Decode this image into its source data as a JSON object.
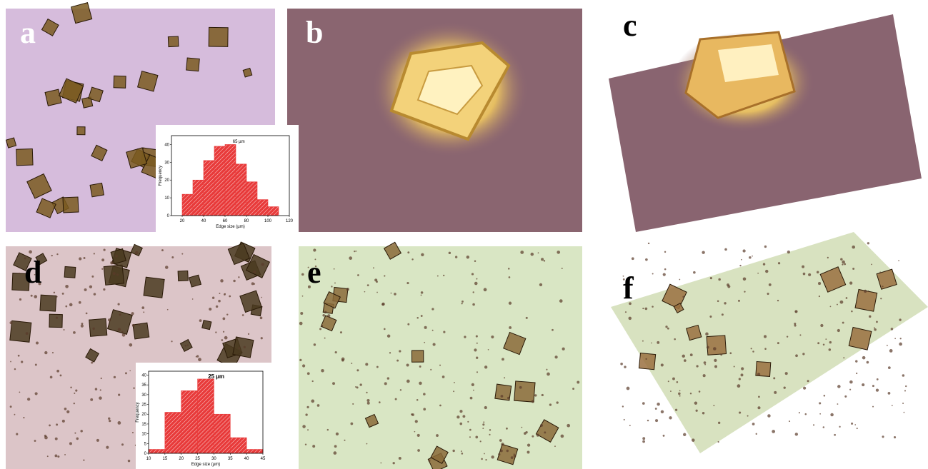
{
  "panels": [
    {
      "label": "a"
    },
    {
      "label": "b"
    },
    {
      "label": "c"
    },
    {
      "label": "d"
    },
    {
      "label": "e"
    },
    {
      "label": "f"
    }
  ],
  "chart_data": [
    {
      "type": "histogram",
      "annotation": "65 µm",
      "x_label": "Edge size (µm)",
      "y_label": "Frequency",
      "bins": [
        20,
        30,
        40,
        50,
        60,
        70,
        80,
        90,
        100,
        110
      ],
      "values": [
        12,
        20,
        31,
        39,
        40,
        29,
        19,
        9,
        5
      ],
      "color": "#e83a3a",
      "xlim": [
        10,
        120
      ],
      "xticks": [
        20,
        40,
        60,
        80,
        100,
        120
      ],
      "ylim": [
        0,
        45
      ],
      "yticks": [
        0,
        10,
        20,
        30,
        40
      ]
    },
    {
      "type": "histogram",
      "annotation": "25 µm",
      "x_label": "Edge size (µm)",
      "y_label": "Frequency",
      "bins": [
        10,
        15,
        20,
        25,
        30,
        35,
        40,
        45
      ],
      "values": [
        2,
        21,
        32,
        38,
        20,
        8,
        2
      ],
      "color": "#e83a3a",
      "xlim": [
        10,
        45
      ],
      "xticks": [
        10,
        15,
        20,
        25,
        30,
        35,
        40,
        45
      ],
      "ylim": [
        0,
        42
      ],
      "yticks": [
        0,
        5,
        10,
        15,
        20,
        25,
        30,
        35,
        40
      ]
    }
  ]
}
